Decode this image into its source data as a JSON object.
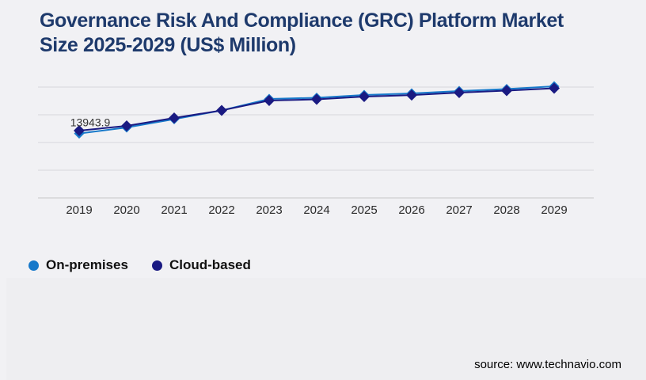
{
  "header": {
    "title_line1": "Governance Risk And Compliance (GRC) Platform Market",
    "title_line2": "Size 2025-2029 (US$ Million)",
    "title_color": "#1e3a6c"
  },
  "chart_data": {
    "type": "line",
    "title": "Governance Risk And Compliance (GRC) Platform Market Size 2025-2029 (US$ Million)",
    "xlabel": "",
    "ylabel": "",
    "categories": [
      "2019",
      "2020",
      "2021",
      "2022",
      "2023",
      "2024",
      "2025",
      "2026",
      "2027",
      "2028",
      "2029"
    ],
    "series": [
      {
        "name": "On-premises",
        "color": "#1779ca",
        "marker": "diamond",
        "values": [
          13943.9,
          15260,
          17060,
          18940,
          21430,
          21690,
          22290,
          22630,
          23140,
          23570,
          24170
        ]
      },
      {
        "name": "Cloud-based",
        "color": "#1a1a82",
        "marker": "diamond",
        "values": [
          14570,
          15600,
          17310,
          18950,
          21090,
          21340,
          21940,
          22270,
          22800,
          23230,
          23740
        ]
      }
    ],
    "data_labels": [
      {
        "series_index": 0,
        "point_index": 0,
        "text": "13943.9"
      }
    ],
    "ylim": [
      0,
      24000
    ],
    "grid_step": 6000,
    "grid": true,
    "legend_position": "bottom-left",
    "axis_label_color": "#2a2a2a",
    "gridline_color": "#d8d8db",
    "axisline_color": "#c6c6c9",
    "data_label_color": "#333333"
  },
  "legend": {
    "items": [
      {
        "label": "On-premises",
        "color": "#1779ca"
      },
      {
        "label": "Cloud-based",
        "color": "#1a1a82"
      }
    ]
  },
  "footer": {
    "source": "source: www.technavio.com"
  }
}
